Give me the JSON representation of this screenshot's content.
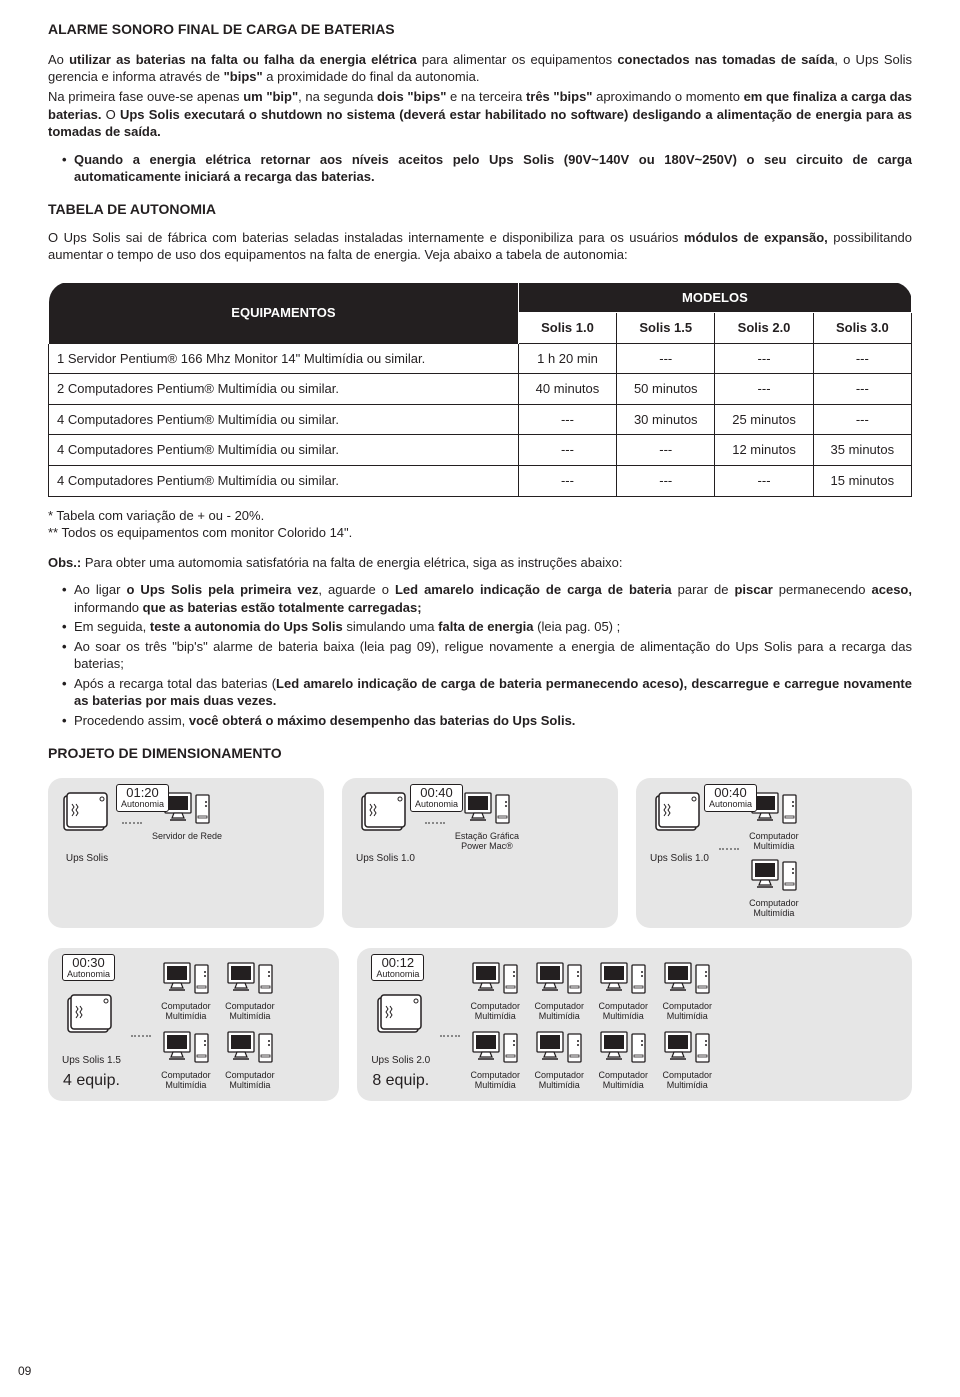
{
  "section1": {
    "title": "ALARME SONORO FINAL DE CARGA DE BATERIAS",
    "p1_html": "Ao <b>utilizar as baterias na falta ou falha da energia elétrica</b> para alimentar os equipamentos <b>conectados nas tomadas de saída</b>, o Ups Solis gerencia e informa através de <b>\"bips\"</b> a proximidade do final da autonomia.",
    "p2_html": "Na primeira fase ouve-se apenas <b>um \"bip\"</b>, na segunda <b>dois \"bips\"</b> e na terceira <b>três \"bips\"</b> aproximando o momento <b>em que finaliza a carga das baterias.</b> O <b>Ups Solis executará o shutdown no sistema (deverá estar habilitado no software) desligando a alimentação de energia para as tomadas de saída.</b>",
    "bullet1_html": "<b>Quando a energia elétrica retornar aos níveis aceitos pelo Ups Solis (90V~140V ou 180V~250V) o seu circuito de carga automaticamente iniciará a recarga das baterias.</b>"
  },
  "section2": {
    "title": "TABELA DE AUTONOMIA",
    "intro_html": "O Ups Solis sai de fábrica com baterias seladas instaladas internamente e disponibiliza para os usuários <b>módulos de expansão,</b> possibilitando aumentar o tempo de uso dos equipamentos na falta de energia. Veja abaixo a tabela de autonomia:",
    "table": {
      "equip_header": "EQUIPAMENTOS",
      "models_header": "MODELOS",
      "model_cols": [
        "Solis 1.0",
        "Solis 1.5",
        "Solis 2.0",
        "Solis 3.0"
      ],
      "rows": [
        {
          "equip": "1 Servidor Pentium® 166 Mhz Monitor 14\" Multimídia ou similar.",
          "vals": [
            "1 h  20 min",
            "---",
            "---",
            "---"
          ]
        },
        {
          "equip": "2 Computadores Pentium® Multimídia ou similar.",
          "vals": [
            "40 minutos",
            "50 minutos",
            "---",
            "---"
          ]
        },
        {
          "equip": "4 Computadores Pentium® Multimídia ou similar.",
          "vals": [
            "---",
            "30 minutos",
            "25 minutos",
            "---"
          ]
        },
        {
          "equip": "4 Computadores Pentium® Multimídia ou similar.",
          "vals": [
            "---",
            "---",
            "12 minutos",
            "35 minutos"
          ]
        },
        {
          "equip": "4 Computadores Pentium® Multimídia ou similar.",
          "vals": [
            "---",
            "---",
            "---",
            "15 minutos"
          ]
        }
      ]
    },
    "footnote1": "*   Tabela com variação de + ou -  20%.",
    "footnote2": "** Todos os equipamentos com monitor Colorido 14\"."
  },
  "obs": {
    "intro_html": "<b>Obs.:</b> Para obter uma automomia satisfatória na falta de energia elétrica, siga as instruções abaixo:",
    "items": [
      "Ao ligar <b>o Ups Solis pela primeira vez</b>, aguarde o <b>Led amarelo indicação de carga de bateria</b> parar de <b>piscar</b> permanecendo <b>aceso,</b> informando <b>que as baterias estão totalmente carregadas;</b>",
      "Em seguida, <b>teste a autonomia do Ups Solis</b> simulando uma <b>falta de energia</b> (leia pag. 05) ;",
      "Ao soar os três \"bip's\" alarme de bateria baixa (leia pag 09), religue novamente a energia de alimentação do Ups Solis para a recarga das baterias;",
      "Após a recarga total das baterias (<b>Led amarelo indicação de carga de bateria permanecendo aceso), descarregue e carregue novamente as baterias por mais duas vezes.</b>",
      "Procedendo assim, <b>você obterá o máximo desempenho das baterias do Ups Solis.</b>"
    ]
  },
  "section3": {
    "title": "PROJETO DE DIMENSIONAMENTO"
  },
  "diagrams": {
    "autonomy_word": "Autonomia",
    "computer_label": "Computador\nMultimídia",
    "row1": [
      {
        "time": "01:20",
        "ups": "Ups Solis",
        "equip_label": "Servidor de Rede"
      },
      {
        "time": "00:40",
        "ups": "Ups Solis 1.0",
        "equip_label": "Estação Gráfica\nPower Mac®"
      },
      {
        "time": "00:40",
        "ups": "Ups Solis 1.0",
        "two_stack": true
      }
    ],
    "row2": [
      {
        "time": "00:30",
        "ups": "Ups Solis 1.5",
        "count": "4 equip.",
        "cols": 2
      },
      {
        "time": "00:12",
        "ups": "Ups Solis 2.0",
        "count": "8 equip.",
        "cols": 4
      }
    ]
  },
  "page_number": "09"
}
